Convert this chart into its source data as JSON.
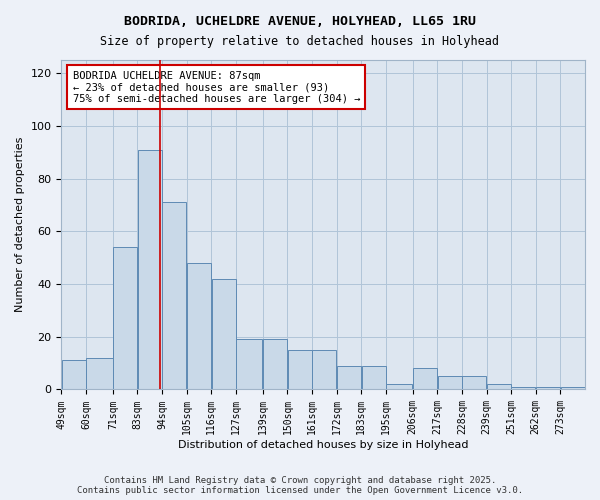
{
  "title1": "BODRIDA, UCHELDRE AVENUE, HOLYHEAD, LL65 1RU",
  "title2": "Size of property relative to detached houses in Holyhead",
  "xlabel": "Distribution of detached houses by size in Holyhead",
  "ylabel": "Number of detached properties",
  "bin_labels": [
    "49sqm",
    "60sqm",
    "71sqm",
    "83sqm",
    "94sqm",
    "105sqm",
    "116sqm",
    "127sqm",
    "139sqm",
    "150sqm",
    "161sqm",
    "172sqm",
    "183sqm",
    "195sqm",
    "206sqm",
    "217sqm",
    "228sqm",
    "239sqm",
    "251sqm",
    "262sqm",
    "273sqm"
  ],
  "bar_heights": [
    11,
    12,
    54,
    91,
    71,
    48,
    42,
    19,
    19,
    15,
    15,
    9,
    9,
    2,
    8,
    5,
    5,
    2,
    1,
    1,
    1
  ],
  "bar_color": "#c9d9e8",
  "bar_edge_color": "#5e8ab4",
  "vline_x": 87,
  "annotation_text": "BODRIDA UCHELDRE AVENUE: 87sqm\n← 23% of detached houses are smaller (93)\n75% of semi-detached houses are larger (304) →",
  "annotation_box_color": "#ffffff",
  "annotation_box_edge": "#cc0000",
  "vline_color": "#cc0000",
  "ylim": [
    0,
    125
  ],
  "yticks": [
    0,
    20,
    40,
    60,
    80,
    100,
    120
  ],
  "grid_color": "#b0c4d8",
  "background_color": "#dde6f0",
  "fig_background": "#edf1f8",
  "footer1": "Contains HM Land Registry data © Crown copyright and database right 2025.",
  "footer2": "Contains public sector information licensed under the Open Government Licence v3.0.",
  "bin_edges": [
    43,
    54,
    66,
    77,
    88,
    99,
    110,
    121,
    133,
    144,
    155,
    166,
    177,
    188,
    200,
    211,
    222,
    233,
    244,
    255,
    266,
    277
  ]
}
